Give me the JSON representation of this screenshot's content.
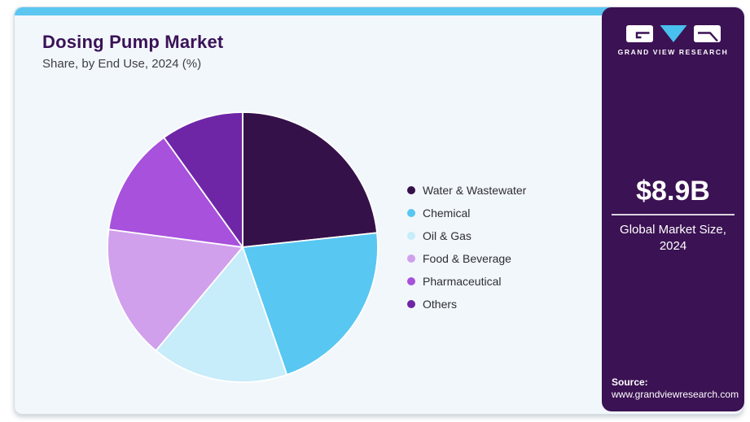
{
  "header": {
    "title": "Dosing Pump Market",
    "subtitle": "Share, by End Use, 2024 (%)"
  },
  "chart_data": {
    "type": "pie",
    "title": "Dosing Pump Market Share, by End Use, 2024 (%)",
    "unit": "%",
    "start_angle_deg": 0,
    "direction": "clockwise",
    "legend_position": "right",
    "slices": [
      {
        "label": "Water & Wastewater",
        "value": 23.3,
        "color": "#351149"
      },
      {
        "label": "Chemical",
        "value": 21.4,
        "color": "#58c7f2"
      },
      {
        "label": "Oil & Gas",
        "value": 16.4,
        "color": "#c7ecfa"
      },
      {
        "label": "Food & Beverage",
        "value": 16.0,
        "color": "#d0a0ec"
      },
      {
        "label": "Pharmaceutical",
        "value": 13.0,
        "color": "#a751dc"
      },
      {
        "label": "Others",
        "value": 9.9,
        "color": "#6e26a6"
      }
    ]
  },
  "sidebar": {
    "brand": "GRAND VIEW RESEARCH",
    "market_size_value": "$8.9B",
    "market_size_label": "Global Market Size, 2024",
    "source_label": "Source:",
    "source_url": "www.grandviewresearch.com"
  },
  "icons": {
    "logo_left_glyph": "gvr-g-icon",
    "logo_triangle": "gvr-v-triangle-icon",
    "logo_right_glyph": "gvr-r-icon"
  },
  "colors": {
    "accent_bar": "#5bc6f0",
    "sidebar_bg": "#3b1253",
    "card_bg": "#f2f7fb",
    "title_color": "#3a1257",
    "subtitle_color": "#3e3e47",
    "legend_color": "#2e2e36",
    "logo_triangle_blue": "#49c0ed",
    "pie_slice_stroke": "#ffffff"
  }
}
